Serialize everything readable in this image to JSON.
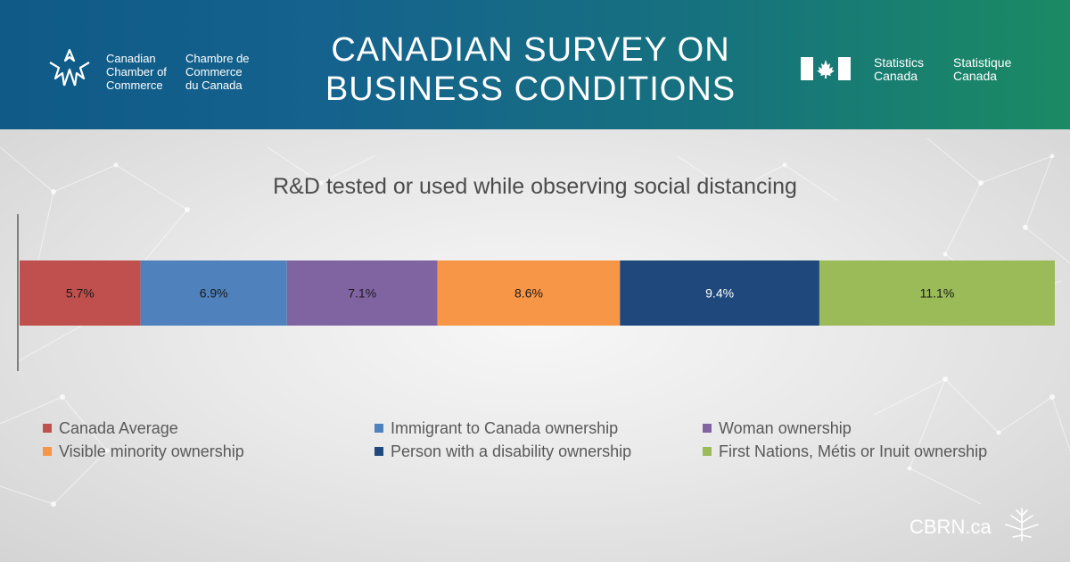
{
  "header": {
    "ccc_en": "Canadian\nChamber of\nCommerce",
    "ccc_fr": "Chambre de\nCommerce\ndu Canada",
    "title": "CANADIAN SURVEY ON\nBUSINESS CONDITIONS",
    "statcan_en": "Statistics\nCanada",
    "statcan_fr": "Statistique\nCanada"
  },
  "footer": {
    "brand": "CBRN.ca"
  },
  "icons": [
    "ccc-logo-icon",
    "canada-flag-icon",
    "maple-leaf-icon"
  ],
  "colors": {
    "canada_average": "#c0504d",
    "immigrant": "#4f81bd",
    "woman": "#8064a2",
    "visible_minority": "#f79646",
    "disability": "#1f497d",
    "first_nations": "#9bbb59"
  },
  "chart_data": {
    "type": "bar",
    "orientation": "horizontal-stacked",
    "title": "R&D tested or used while observing social distancing",
    "legend_position": "bottom",
    "grid": false,
    "series": [
      {
        "name": "Canada Average",
        "value": 5.7,
        "label": "5.7%",
        "color": "#c0504d",
        "text_color": "#1a1a1a"
      },
      {
        "name": "Immigrant to Canada ownership",
        "value": 6.9,
        "label": "6.9%",
        "color": "#4f81bd",
        "text_color": "#1a1a1a"
      },
      {
        "name": "Woman ownership",
        "value": 7.1,
        "label": "7.1%",
        "color": "#8064a2",
        "text_color": "#1a1a1a"
      },
      {
        "name": "Visible minority ownership",
        "value": 8.6,
        "label": "8.6%",
        "color": "#f79646",
        "text_color": "#1a1a1a"
      },
      {
        "name": "Person with a disability ownership",
        "value": 9.4,
        "label": "9.4%",
        "color": "#1f497d",
        "text_color": "#ffffff"
      },
      {
        "name": "First Nations, Métis or Inuit ownership",
        "value": 11.1,
        "label": "11.1%",
        "color": "#9bbb59",
        "text_color": "#1a1a1a"
      }
    ]
  }
}
